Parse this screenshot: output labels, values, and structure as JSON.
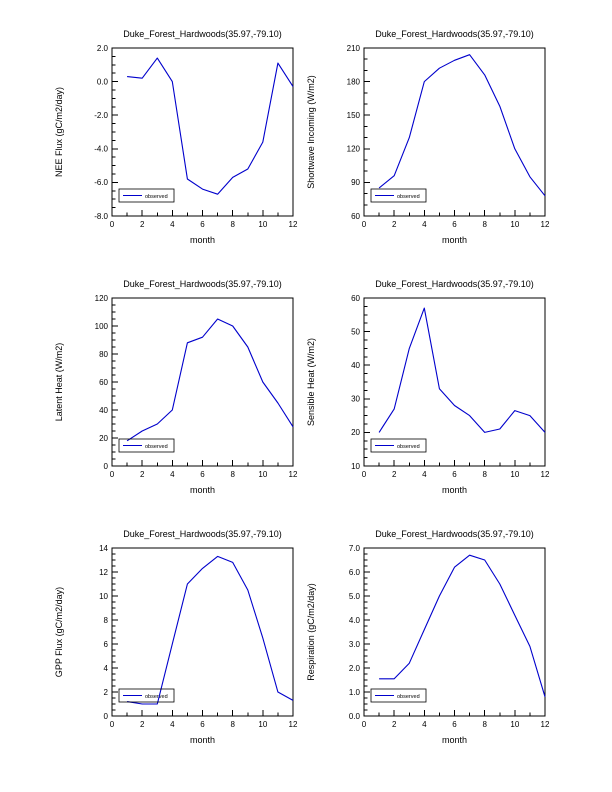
{
  "page": {
    "background": "#ffffff"
  },
  "chart_data": [
    {
      "type": "line",
      "title": "Duke_Forest_Hardwoods(35.97,-79.10)",
      "xlabel": "month",
      "ylabel": "NEE Flux (gC/m2/day)",
      "legend": "observed",
      "line_color": "#0000cc",
      "x": [
        1,
        2,
        3,
        4,
        5,
        6,
        7,
        8,
        9,
        10,
        11,
        12
      ],
      "values": [
        0.3,
        0.2,
        1.4,
        0.0,
        -5.8,
        -6.4,
        -6.7,
        -5.7,
        -5.2,
        -3.6,
        1.1,
        -0.3
      ],
      "xlim": [
        0,
        12
      ],
      "xmajor": 2,
      "xminor": 1,
      "xdecimals": 0,
      "ylim": [
        -8,
        2
      ],
      "ymajor": 2,
      "yminor": 0.5,
      "ydecimals": 1
    },
    {
      "type": "line",
      "title": "Duke_Forest_Hardwoods(35.97,-79.10)",
      "xlabel": "month",
      "ylabel": "Shortwave Incoming (W/m2)",
      "legend": "observed",
      "line_color": "#0000cc",
      "x": [
        1,
        2,
        3,
        4,
        5,
        6,
        7,
        8,
        9,
        10,
        11,
        12
      ],
      "values": [
        85,
        96,
        130,
        180,
        192,
        199,
        204,
        186,
        158,
        120,
        95,
        78
      ],
      "xlim": [
        0,
        12
      ],
      "xmajor": 2,
      "xminor": 1,
      "xdecimals": 0,
      "ylim": [
        60,
        210
      ],
      "ymajor": 30,
      "yminor": 10,
      "ydecimals": 0
    },
    {
      "type": "line",
      "title": "Duke_Forest_Hardwoods(35.97,-79.10)",
      "xlabel": "month",
      "ylabel": "Latent Heat (W/m2)",
      "legend": "observed",
      "line_color": "#0000cc",
      "x": [
        1,
        2,
        3,
        4,
        5,
        6,
        7,
        8,
        9,
        10,
        11,
        12
      ],
      "values": [
        18,
        25,
        30,
        40,
        88,
        92,
        105,
        100,
        85,
        60,
        45,
        28
      ],
      "xlim": [
        0,
        12
      ],
      "xmajor": 2,
      "xminor": 1,
      "xdecimals": 0,
      "ylim": [
        0,
        120
      ],
      "ymajor": 20,
      "yminor": 5,
      "ydecimals": 0
    },
    {
      "type": "line",
      "title": "Duke_Forest_Hardwoods(35.97,-79.10)",
      "xlabel": "month",
      "ylabel": "Sensible Heat (W/m2)",
      "legend": "observed",
      "line_color": "#0000cc",
      "x": [
        1,
        2,
        3,
        4,
        5,
        6,
        7,
        8,
        9,
        10,
        11,
        12
      ],
      "values": [
        20,
        27,
        45,
        57,
        33,
        28,
        25,
        20,
        21,
        26.5,
        25,
        20
      ],
      "xlim": [
        0,
        12
      ],
      "xmajor": 2,
      "xminor": 1,
      "xdecimals": 0,
      "ylim": [
        10,
        60
      ],
      "ymajor": 10,
      "yminor": 2.5,
      "ydecimals": 0
    },
    {
      "type": "line",
      "title": "Duke_Forest_Hardwoods(35.97,-79.10)",
      "xlabel": "month",
      "ylabel": "GPP Flux (gC/m2/day)",
      "legend": "observed",
      "line_color": "#0000cc",
      "x": [
        1,
        2,
        3,
        4,
        5,
        6,
        7,
        8,
        9,
        10,
        11,
        12
      ],
      "values": [
        1.2,
        1.0,
        1.0,
        6.0,
        11.0,
        12.3,
        13.3,
        12.8,
        10.5,
        6.5,
        2.0,
        1.3
      ],
      "xlim": [
        0,
        12
      ],
      "xmajor": 2,
      "xminor": 1,
      "xdecimals": 0,
      "ylim": [
        0,
        14
      ],
      "ymajor": 2,
      "yminor": 0.5,
      "ydecimals": 0
    },
    {
      "type": "line",
      "title": "Duke_Forest_Hardwoods(35.97,-79.10)",
      "xlabel": "month",
      "ylabel": "Respiration (gC/m2/day)",
      "legend": "observed",
      "line_color": "#0000cc",
      "x": [
        1,
        2,
        3,
        4,
        5,
        6,
        7,
        8,
        9,
        10,
        11,
        12
      ],
      "values": [
        1.55,
        1.55,
        2.2,
        3.6,
        5.0,
        6.2,
        6.7,
        6.5,
        5.5,
        4.2,
        2.9,
        0.8
      ],
      "xlim": [
        0,
        12
      ],
      "xmajor": 2,
      "xminor": 1,
      "xdecimals": 0,
      "ylim": [
        0,
        7
      ],
      "ymajor": 1,
      "yminor": 0.25,
      "ydecimals": 1
    }
  ]
}
